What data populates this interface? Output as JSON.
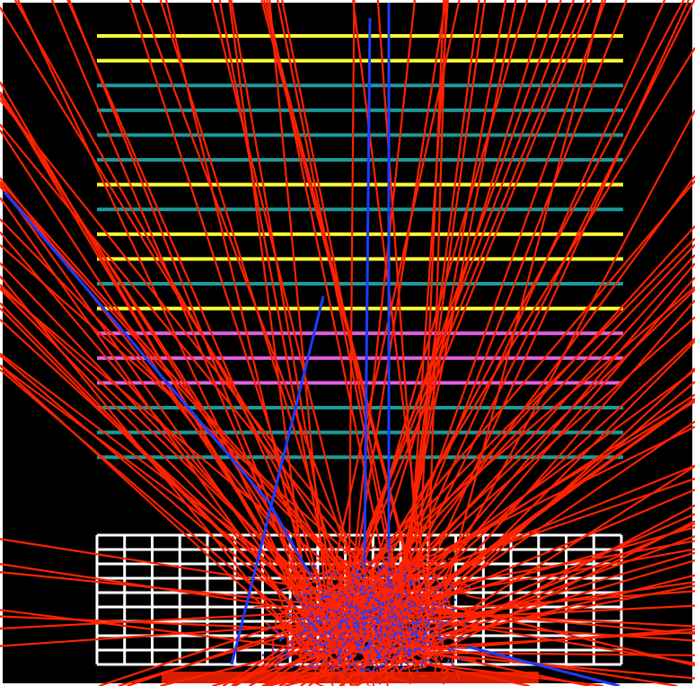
{
  "scene": {
    "kind": "particle-shower-event-display",
    "background_color": "#000000",
    "frame_color": "#ffffff",
    "detector": {
      "tracker_planes": [
        {
          "color": "#ffff33"
        },
        {
          "color": "#ffff33"
        },
        {
          "color": "#1a9b9b"
        },
        {
          "color": "#1a9b9b"
        },
        {
          "color": "#1a9b9b"
        },
        {
          "color": "#1a9b9b"
        },
        {
          "color": "#ffff33"
        },
        {
          "color": "#1a9b9b"
        },
        {
          "color": "#ffff33"
        },
        {
          "color": "#ffff33"
        },
        {
          "color": "#1a9b9b"
        },
        {
          "color": "#ffff33"
        },
        {
          "color": "#e060e0"
        },
        {
          "color": "#e060e0"
        },
        {
          "color": "#e060e0"
        },
        {
          "color": "#1a9b9b"
        },
        {
          "color": "#1a9b9b"
        },
        {
          "color": "#1a9b9b"
        }
      ],
      "calorimeter": {
        "grid_color": "#ffffff",
        "columns": 19,
        "rows": 9
      }
    },
    "tracks": {
      "charged_color": "#ff2200",
      "neutral_color": "#1f3bff",
      "charged_track_count": 160,
      "neutral_track_count": 6,
      "hit_color": "#2a3cff"
    }
  }
}
